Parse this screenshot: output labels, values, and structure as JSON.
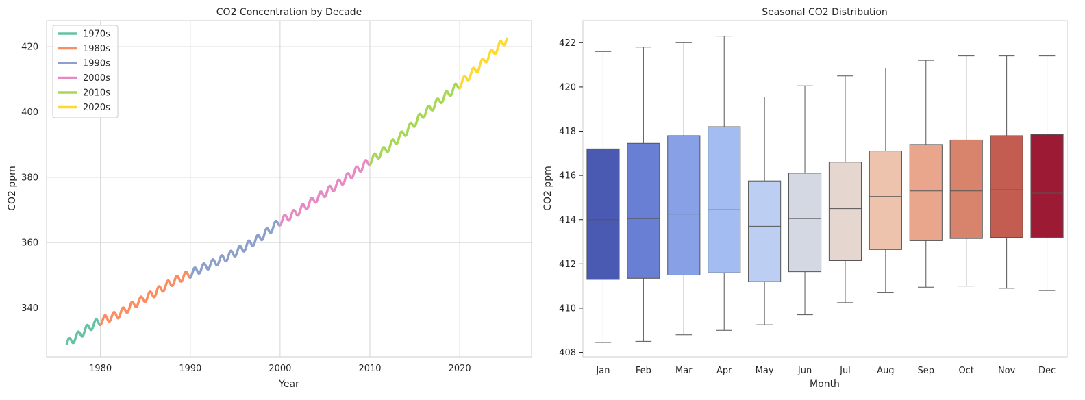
{
  "chart_data": [
    {
      "type": "line",
      "title": "CO2 Concentration by Decade",
      "xlabel": "Year",
      "ylabel": "CO2 ppm",
      "xlim": [
        1974.0,
        2028.0
      ],
      "ylim": [
        325.0,
        428.0
      ],
      "xticks": [
        1980,
        1990,
        2000,
        2010,
        2020
      ],
      "yticks": [
        340,
        360,
        380,
        400,
        420
      ],
      "grid": true,
      "legend_position": "top-left",
      "seasonal_amplitude_ppm": 1.2,
      "series": [
        {
          "name": "1970s",
          "color": "#66c2a5",
          "x": [
            1976.25,
            1977.0,
            1978.0,
            1979.0,
            1980.0
          ],
          "y": [
            329.0,
            330.5,
            332.5,
            334.5,
            336.0
          ]
        },
        {
          "name": "1980s",
          "color": "#fc8d62",
          "x": [
            1980.0,
            1982.0,
            1984.0,
            1986.0,
            1988.0,
            1990.0
          ],
          "y": [
            336.0,
            338.0,
            341.5,
            344.5,
            348.0,
            350.5
          ]
        },
        {
          "name": "1990s",
          "color": "#8da0cb",
          "x": [
            1990.0,
            1992.0,
            1994.0,
            1996.0,
            1998.0,
            2000.0
          ],
          "y": [
            350.5,
            353.0,
            355.5,
            358.5,
            362.0,
            366.5
          ]
        },
        {
          "name": "2000s",
          "color": "#e78ac3",
          "x": [
            2000.0,
            2002.0,
            2004.0,
            2006.0,
            2008.0,
            2010.0
          ],
          "y": [
            366.5,
            369.5,
            373.5,
            377.0,
            381.0,
            385.0
          ]
        },
        {
          "name": "2010s",
          "color": "#a6d854",
          "x": [
            2010.0,
            2012.0,
            2014.0,
            2016.0,
            2018.0,
            2020.0
          ],
          "y": [
            385.0,
            389.0,
            394.0,
            399.5,
            404.0,
            408.5
          ]
        },
        {
          "name": "2020s",
          "color": "#ffd92f",
          "x": [
            2020.0,
            2021.0,
            2022.0,
            2023.0,
            2024.0,
            2025.25
          ],
          "y": [
            408.5,
            411.0,
            413.5,
            416.5,
            419.0,
            422.5
          ]
        }
      ]
    },
    {
      "type": "box",
      "title": "Seasonal CO2 Distribution",
      "xlabel": "Month",
      "ylabel": "CO2 ppm",
      "ylim": [
        407.8,
        423.0
      ],
      "yticks": [
        408,
        410,
        412,
        414,
        416,
        418,
        420,
        422
      ],
      "grid": false,
      "categories": [
        "Jan",
        "Feb",
        "Mar",
        "Apr",
        "May",
        "Jun",
        "Jul",
        "Aug",
        "Sep",
        "Oct",
        "Nov",
        "Dec"
      ],
      "boxes": [
        {
          "min": 408.45,
          "q1": 411.3,
          "median": 414.0,
          "q3": 417.2,
          "max": 421.6,
          "color": "#4a5ab2"
        },
        {
          "min": 408.5,
          "q1": 411.35,
          "median": 414.05,
          "q3": 417.45,
          "max": 421.8,
          "color": "#687fd4"
        },
        {
          "min": 408.8,
          "q1": 411.5,
          "median": 414.25,
          "q3": 417.8,
          "max": 422.0,
          "color": "#88a1e6"
        },
        {
          "min": 409.0,
          "q1": 411.6,
          "median": 414.45,
          "q3": 418.2,
          "max": 422.3,
          "color": "#a3bcf2"
        },
        {
          "min": 409.25,
          "q1": 411.2,
          "median": 413.7,
          "q3": 415.75,
          "max": 419.55,
          "color": "#bccff2"
        },
        {
          "min": 409.7,
          "q1": 411.65,
          "median": 414.05,
          "q3": 416.1,
          "max": 420.05,
          "color": "#d3d8e3"
        },
        {
          "min": 410.25,
          "q1": 412.15,
          "median": 414.5,
          "q3": 416.6,
          "max": 420.5,
          "color": "#e5d6cf"
        },
        {
          "min": 410.7,
          "q1": 412.65,
          "median": 415.05,
          "q3": 417.1,
          "max": 420.85,
          "color": "#edc3ad"
        },
        {
          "min": 410.95,
          "q1": 413.05,
          "median": 415.3,
          "q3": 417.4,
          "max": 421.2,
          "color": "#e9a68c"
        },
        {
          "min": 411.0,
          "q1": 413.15,
          "median": 415.3,
          "q3": 417.6,
          "max": 421.4,
          "color": "#d8846d"
        },
        {
          "min": 410.9,
          "q1": 413.2,
          "median": 415.35,
          "q3": 417.8,
          "max": 421.4,
          "color": "#c35d52"
        },
        {
          "min": 410.8,
          "q1": 413.2,
          "median": 415.2,
          "q3": 417.85,
          "max": 421.4,
          "color": "#9c1a34"
        }
      ]
    }
  ]
}
